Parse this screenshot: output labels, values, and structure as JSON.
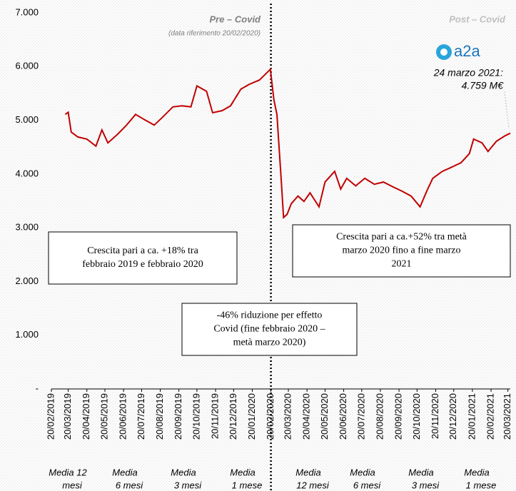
{
  "chart_data": {
    "type": "line",
    "pre_label": "Pre – Covid",
    "pre_note": "(data riferimento 20/02/2020)",
    "post_label": "Post – Covid",
    "logo": "a2a",
    "end_annotation": [
      "24 marzo 2021:",
      "4.759 M€"
    ],
    "boxes": [
      [
        "Crescita pari a ca. +18% tra",
        "febbraio 2019 e febbraio 2020"
      ],
      [
        "Crescita pari a ca.+52% tra metà",
        "marzo 2020 fino a fine marzo",
        "2021"
      ],
      [
        "-46% riduzione per effetto",
        "Covid (fine febbraio 2020 –",
        "metà marzo 2020)"
      ]
    ],
    "bottom_labels": [
      [
        "Media 12",
        "mesi"
      ],
      [
        "Media",
        "6 mesi"
      ],
      [
        "Media",
        "3 mesi"
      ],
      [
        "Media",
        "1 mese"
      ],
      [
        "Media",
        "12 mesi"
      ],
      [
        "Media",
        "6 mesi"
      ],
      [
        "Media",
        "3 mesi"
      ],
      [
        "Media",
        "1 mese"
      ]
    ],
    "xlim": [
      "20/02/2019",
      "24/03/2021"
    ],
    "xticks": [
      "20/02/2019",
      "20/03/2019",
      "20/04/2019",
      "20/05/2019",
      "20/06/2019",
      "20/07/2019",
      "20/08/2019",
      "20/09/2019",
      "20/10/2019",
      "20/11/2019",
      "20/12/2019",
      "20/01/2020",
      "20/02/2020",
      "20/03/2020",
      "20/04/2020",
      "20/05/2020",
      "20/06/2020",
      "20/07/2020",
      "20/08/2020",
      "20/09/2020",
      "20/10/2020",
      "20/11/2020",
      "20/12/2020",
      "20/01/2021",
      "20/02/2021",
      "20/03/2021"
    ],
    "ylim": [
      0,
      7000
    ],
    "yticks": [
      {
        "value": 0,
        "label": "-"
      },
      {
        "value": 1000,
        "label": "1.000"
      },
      {
        "value": 2000,
        "label": "2.000"
      },
      {
        "value": 3000,
        "label": "3.000"
      },
      {
        "value": 4000,
        "label": "4.000"
      },
      {
        "value": 5000,
        "label": "5.000"
      },
      {
        "value": 6000,
        "label": "6.000"
      },
      {
        "value": 7000,
        "label": "7.000"
      }
    ],
    "series": [
      {
        "color": "#c00000",
        "x": [
          "15/03/2019",
          "20/03/2019",
          "25/03/2019",
          "05/04/2019",
          "20/04/2019",
          "05/05/2019",
          "15/05/2019",
          "25/05/2019",
          "10/06/2019",
          "25/06/2019",
          "10/07/2019",
          "25/07/2019",
          "10/08/2019",
          "25/08/2019",
          "10/09/2019",
          "25/09/2019",
          "10/10/2019",
          "20/10/2019",
          "05/11/2019",
          "15/11/2019",
          "01/12/2019",
          "15/12/2019",
          "01/01/2020",
          "15/01/2020",
          "01/02/2020",
          "19/02/2020",
          "25/02/2020",
          "01/03/2020",
          "08/03/2020",
          "12/03/2020",
          "18/03/2020",
          "25/03/2020",
          "05/04/2020",
          "15/04/2020",
          "25/04/2020",
          "10/05/2020",
          "20/05/2020",
          "05/06/2020",
          "15/06/2020",
          "25/06/2020",
          "10/07/2020",
          "25/07/2020",
          "10/08/2020",
          "25/08/2020",
          "10/09/2020",
          "25/09/2020",
          "10/10/2020",
          "25/10/2020",
          "05/11/2020",
          "15/11/2020",
          "01/12/2020",
          "15/12/2020",
          "01/01/2021",
          "15/01/2021",
          "22/01/2021",
          "05/02/2021",
          "15/02/2021",
          "01/03/2021",
          "15/03/2021",
          "24/03/2021"
        ],
        "values": [
          5110,
          5150,
          4780,
          4690,
          4650,
          4520,
          4820,
          4580,
          4740,
          4910,
          5110,
          5010,
          4910,
          5070,
          5250,
          5270,
          5250,
          5640,
          5540,
          5140,
          5180,
          5270,
          5580,
          5670,
          5750,
          5950,
          5380,
          5110,
          3920,
          3190,
          3250,
          3450,
          3590,
          3490,
          3650,
          3390,
          3850,
          4050,
          3720,
          3920,
          3780,
          3920,
          3810,
          3850,
          3760,
          3680,
          3590,
          3390,
          3680,
          3920,
          4050,
          4120,
          4210,
          4380,
          4650,
          4580,
          4420,
          4610,
          4710,
          4759
        ]
      }
    ]
  }
}
